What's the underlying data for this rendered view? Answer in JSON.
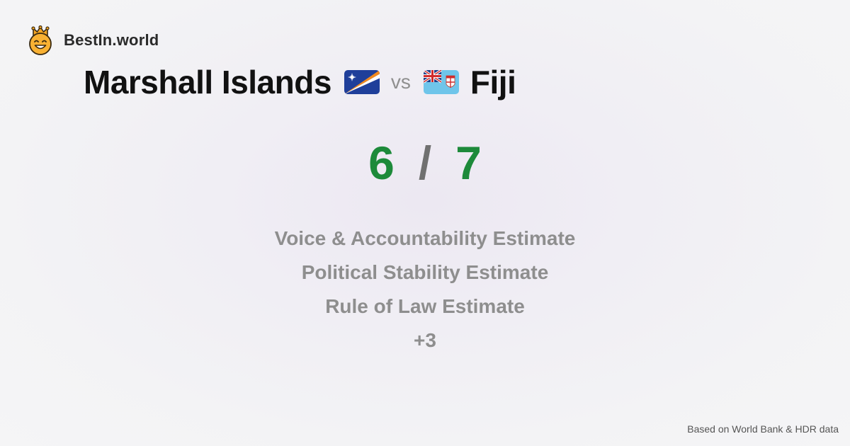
{
  "brand": {
    "name": "BestIn.world",
    "logo_icon": "crown-smiley-icon"
  },
  "comparison": {
    "left_country": "Marshall Islands",
    "left_flag_icon": "marshall-islands-flag-icon",
    "vs_label": "vs",
    "right_flag_icon": "fiji-flag-icon",
    "right_country": "Fiji"
  },
  "score": {
    "left": "6",
    "separator": "/",
    "right": "7"
  },
  "metrics": [
    "Voice & Accountability Estimate",
    "Political Stability Estimate",
    "Rule of Law Estimate",
    "+3"
  ],
  "footer": {
    "source": "Based on World Bank & HDR data"
  },
  "colors": {
    "score_green": "#1d8a3a",
    "muted_text": "#8e8e8e"
  }
}
